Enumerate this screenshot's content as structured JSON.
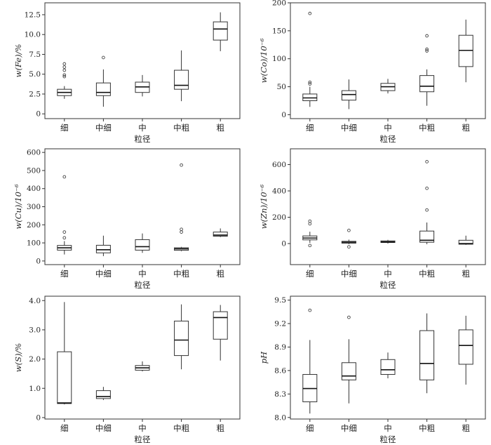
{
  "figure": {
    "xlabel": "粒径",
    "categories": [
      "细",
      "中细",
      "中",
      "中粗",
      "粗"
    ]
  },
  "chart_data": [
    {
      "type": "box",
      "ylabel": "w(Fe)/%",
      "ylim": [
        -0.6,
        14.0
      ],
      "yticks": [
        0,
        2.5,
        5.0,
        7.5,
        10.0,
        12.5
      ],
      "ytick_labels": [
        "0",
        "2.5",
        "5.0",
        "7.5",
        "10.0",
        "12.5"
      ],
      "categories": [
        "细",
        "中细",
        "中",
        "中粗",
        "粗"
      ],
      "boxes": [
        {
          "min": 1.9,
          "q1": 2.3,
          "median": 2.7,
          "q3": 3.1,
          "max": 3.5,
          "outliers": [
            4.7,
            4.9,
            5.5,
            5.9,
            6.3
          ]
        },
        {
          "min": 0.9,
          "q1": 2.3,
          "median": 2.7,
          "q3": 3.9,
          "max": 5.6,
          "outliers": [
            7.1
          ]
        },
        {
          "min": 2.2,
          "q1": 2.7,
          "median": 3.4,
          "q3": 4.0,
          "max": 4.9,
          "outliers": []
        },
        {
          "min": 1.6,
          "q1": 3.1,
          "median": 3.6,
          "q3": 5.5,
          "max": 8.0,
          "outliers": []
        },
        {
          "min": 7.9,
          "q1": 9.3,
          "median": 10.7,
          "q3": 11.6,
          "max": 12.8,
          "outliers": []
        }
      ]
    },
    {
      "type": "box",
      "ylabel": "w(Co)/10⁻⁶",
      "ylim": [
        -7,
        200
      ],
      "yticks": [
        0,
        50,
        100,
        150,
        200
      ],
      "ytick_labels": [
        "0",
        "50",
        "100",
        "150",
        "200"
      ],
      "categories": [
        "细",
        "中细",
        "中",
        "中粗",
        "粗"
      ],
      "boxes": [
        {
          "min": 14,
          "q1": 25,
          "median": 30,
          "q3": 37,
          "max": 50,
          "outliers": [
            55,
            58,
            181
          ]
        },
        {
          "min": 10,
          "q1": 26,
          "median": 36,
          "q3": 43,
          "max": 63,
          "outliers": []
        },
        {
          "min": 38,
          "q1": 43,
          "median": 50,
          "q3": 56,
          "max": 64,
          "outliers": []
        },
        {
          "min": 16,
          "q1": 41,
          "median": 51,
          "q3": 70,
          "max": 81,
          "outliers": [
            114,
            117,
            141
          ]
        },
        {
          "min": 58,
          "q1": 86,
          "median": 115,
          "q3": 142,
          "max": 170,
          "outliers": []
        }
      ]
    },
    {
      "type": "box",
      "ylabel": "w(Cu)/10⁻⁶",
      "ylim": [
        -20,
        620
      ],
      "yticks": [
        0,
        100,
        200,
        300,
        400,
        500,
        600
      ],
      "ytick_labels": [
        "0",
        "100",
        "200",
        "300",
        "400",
        "500",
        "600"
      ],
      "categories": [
        "细",
        "中细",
        "中",
        "中粗",
        "粗"
      ],
      "boxes": [
        {
          "min": 36,
          "q1": 60,
          "median": 73,
          "q3": 86,
          "max": 110,
          "outliers": [
            128,
            160,
            465
          ]
        },
        {
          "min": 27,
          "q1": 45,
          "median": 62,
          "q3": 87,
          "max": 140,
          "outliers": []
        },
        {
          "min": 45,
          "q1": 60,
          "median": 79,
          "q3": 118,
          "max": 152,
          "outliers": []
        },
        {
          "min": 54,
          "q1": 59,
          "median": 67,
          "q3": 73,
          "max": 78,
          "outliers": [
            160,
            175,
            530
          ]
        },
        {
          "min": 132,
          "q1": 137,
          "median": 143,
          "q3": 160,
          "max": 180,
          "outliers": []
        }
      ]
    },
    {
      "type": "box",
      "ylabel": "w(Zn)/10⁻⁶",
      "ylim": [
        -160,
        720
      ],
      "yticks": [
        0,
        200,
        400,
        600
      ],
      "ytick_labels": [
        "0",
        "200",
        "400",
        "600"
      ],
      "categories": [
        "细",
        "中细",
        "中",
        "中粗",
        "粗"
      ],
      "boxes": [
        {
          "min": 5,
          "q1": 28,
          "median": 42,
          "q3": 58,
          "max": 90,
          "outliers": [
            -15,
            150,
            170
          ]
        },
        {
          "min": -5,
          "q1": 3,
          "median": 10,
          "q3": 17,
          "max": 30,
          "outliers": [
            -25,
            100
          ]
        },
        {
          "min": 0,
          "q1": 8,
          "median": 13,
          "q3": 20,
          "max": 28,
          "outliers": []
        },
        {
          "min": -5,
          "q1": 10,
          "median": 25,
          "q3": 95,
          "max": 160,
          "outliers": [
            255,
            420,
            622
          ]
        },
        {
          "min": -10,
          "q1": -5,
          "median": 0,
          "q3": 25,
          "max": 60,
          "outliers": []
        }
      ]
    },
    {
      "type": "box",
      "ylabel": "w(S)/%",
      "ylim": [
        -0.05,
        4.15
      ],
      "yticks": [
        0,
        1.0,
        2.0,
        3.0,
        4.0
      ],
      "ytick_labels": [
        "0",
        "1.0",
        "2.0",
        "3.0",
        "4.0"
      ],
      "categories": [
        "细",
        "中细",
        "中",
        "中粗",
        "粗"
      ],
      "boxes": [
        {
          "min": 0.45,
          "q1": 0.48,
          "median": 0.5,
          "q3": 2.25,
          "max": 3.95,
          "outliers": []
        },
        {
          "min": 0.6,
          "q1": 0.65,
          "median": 0.72,
          "q3": 0.92,
          "max": 1.05,
          "outliers": []
        },
        {
          "min": 1.58,
          "q1": 1.62,
          "median": 1.7,
          "q3": 1.78,
          "max": 1.92,
          "outliers": []
        },
        {
          "min": 1.65,
          "q1": 2.12,
          "median": 2.65,
          "q3": 3.3,
          "max": 3.87,
          "outliers": []
        },
        {
          "min": 1.95,
          "q1": 2.68,
          "median": 3.42,
          "q3": 3.62,
          "max": 3.85,
          "outliers": []
        }
      ]
    },
    {
      "type": "box",
      "ylabel": "pH",
      "ylim": [
        7.98,
        9.55
      ],
      "yticks": [
        8.0,
        8.3,
        8.6,
        8.9,
        9.2,
        9.5
      ],
      "ytick_labels": [
        "8.0",
        "8.3",
        "8.6",
        "8.9",
        "9.2",
        "9.5"
      ],
      "categories": [
        "细",
        "中细",
        "中",
        "中粗",
        "粗"
      ],
      "boxes": [
        {
          "min": 8.05,
          "q1": 8.2,
          "median": 8.37,
          "q3": 8.55,
          "max": 8.99,
          "outliers": [
            9.37
          ]
        },
        {
          "min": 8.18,
          "q1": 8.48,
          "median": 8.53,
          "q3": 8.7,
          "max": 9.0,
          "outliers": [
            9.28
          ]
        },
        {
          "min": 8.5,
          "q1": 8.55,
          "median": 8.61,
          "q3": 8.74,
          "max": 8.83,
          "outliers": []
        },
        {
          "min": 8.31,
          "q1": 8.48,
          "median": 8.69,
          "q3": 9.11,
          "max": 9.33,
          "outliers": []
        },
        {
          "min": 8.42,
          "q1": 8.68,
          "median": 8.92,
          "q3": 9.12,
          "max": 9.3,
          "outliers": []
        }
      ]
    }
  ]
}
